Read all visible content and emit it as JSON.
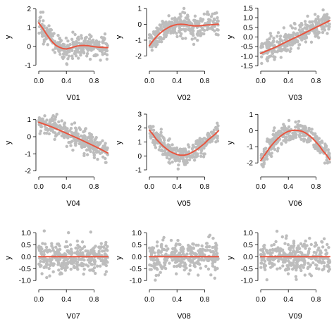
{
  "chart_data": [
    {
      "type": "scatter",
      "id": "V01",
      "xlabel": "V01",
      "ylabel": "y",
      "xlim": [
        0,
        1
      ],
      "ylim": [
        -1.1,
        2.1
      ],
      "xticks": [
        0.0,
        0.4,
        0.8
      ],
      "xtick_labels": [
        "0.0",
        "0.4",
        "0.8"
      ],
      "yticks": [
        -1,
        0,
        1,
        2
      ],
      "ytick_labels": [
        "-1",
        "0",
        "1",
        "2"
      ],
      "noise": 0.3,
      "fit_x": [
        0,
        0.05,
        0.1,
        0.15,
        0.2,
        0.25,
        0.3,
        0.35,
        0.4,
        0.45,
        0.5,
        0.55,
        0.6,
        0.65,
        0.7,
        0.75,
        0.8,
        0.85,
        0.9,
        0.95,
        1.0
      ],
      "fit_y": [
        1.25,
        1.0,
        0.72,
        0.45,
        0.22,
        0.05,
        -0.05,
        -0.12,
        -0.14,
        -0.1,
        -0.04,
        0.01,
        0.04,
        0.05,
        0.04,
        0.01,
        -0.02,
        -0.04,
        -0.05,
        -0.06,
        -0.07
      ]
    },
    {
      "type": "scatter",
      "id": "V02",
      "xlabel": "V02",
      "ylabel": "y",
      "xlim": [
        0,
        1
      ],
      "ylim": [
        -2.7,
        1.1
      ],
      "xticks": [
        0.0,
        0.4,
        0.8
      ],
      "xtick_labels": [
        "0.0",
        "0.4",
        "0.8"
      ],
      "yticks": [
        -2,
        -1,
        0,
        1
      ],
      "ytick_labels": [
        "-2",
        "-1",
        "0",
        "1"
      ],
      "noise": 0.35,
      "fit_x": [
        0,
        0.05,
        0.1,
        0.15,
        0.2,
        0.25,
        0.3,
        0.35,
        0.4,
        0.45,
        0.5,
        0.55,
        0.6,
        0.65,
        0.7,
        0.75,
        0.8,
        0.85,
        0.9,
        0.95,
        1.0
      ],
      "fit_y": [
        -1.35,
        -1.05,
        -0.8,
        -0.58,
        -0.4,
        -0.26,
        -0.14,
        -0.06,
        -0.01,
        0.01,
        0.0,
        -0.03,
        -0.07,
        -0.1,
        -0.1,
        -0.08,
        -0.05,
        -0.03,
        -0.02,
        0.0,
        0.02
      ]
    },
    {
      "type": "scatter",
      "id": "V03",
      "xlabel": "V03",
      "ylabel": "y",
      "xlim": [
        0,
        1
      ],
      "ylim": [
        -1.55,
        1.55
      ],
      "xticks": [
        0.0,
        0.4,
        0.8
      ],
      "xtick_labels": [
        "0.0",
        "0.4",
        "0.8"
      ],
      "yticks": [
        -1.5,
        -1.0,
        -0.5,
        0.0,
        0.5,
        1.0,
        1.5
      ],
      "ytick_labels": [
        "-1.5",
        "-1.0",
        "-0.5",
        "0.0",
        "0.5",
        "1.0",
        "1.5"
      ],
      "noise": 0.3,
      "fit_x": [
        0,
        0.1,
        0.2,
        0.3,
        0.4,
        0.5,
        0.6,
        0.7,
        0.8,
        0.9,
        1.0
      ],
      "fit_y": [
        -0.85,
        -0.7,
        -0.55,
        -0.38,
        -0.2,
        -0.03,
        0.14,
        0.32,
        0.5,
        0.67,
        0.85
      ]
    },
    {
      "type": "scatter",
      "id": "V04",
      "xlabel": "V04",
      "ylabel": "y",
      "xlim": [
        0,
        1
      ],
      "ylim": [
        -2.1,
        1.4
      ],
      "xticks": [
        0.0,
        0.4,
        0.8
      ],
      "xtick_labels": [
        "0.0",
        "0.4",
        "0.8"
      ],
      "yticks": [
        -2,
        -1,
        0,
        1
      ],
      "ytick_labels": [
        "-2",
        "-1",
        "0",
        "1"
      ],
      "noise": 0.3,
      "fit_x": [
        0,
        0.1,
        0.2,
        0.3,
        0.4,
        0.5,
        0.6,
        0.7,
        0.8,
        0.9,
        1.0
      ],
      "fit_y": [
        0.85,
        0.7,
        0.55,
        0.38,
        0.2,
        0.02,
        -0.16,
        -0.35,
        -0.54,
        -0.74,
        -0.95
      ]
    },
    {
      "type": "scatter",
      "id": "V05",
      "xlabel": "V05",
      "ylabel": "y",
      "xlim": [
        0,
        1
      ],
      "ylim": [
        -1.2,
        3.1
      ],
      "xticks": [
        0.0,
        0.4,
        0.8
      ],
      "xtick_labels": [
        "0.0",
        "0.4",
        "0.8"
      ],
      "yticks": [
        -1,
        0,
        1,
        2,
        3
      ],
      "ytick_labels": [
        "-1",
        "0",
        "1",
        "2",
        "3"
      ],
      "noise": 0.35,
      "fit_x": [
        0,
        0.05,
        0.1,
        0.15,
        0.2,
        0.25,
        0.3,
        0.35,
        0.4,
        0.45,
        0.5,
        0.55,
        0.6,
        0.65,
        0.7,
        0.75,
        0.8,
        0.85,
        0.9,
        0.95,
        1.0
      ],
      "fit_y": [
        1.85,
        1.55,
        1.2,
        0.95,
        0.7,
        0.5,
        0.32,
        0.2,
        0.1,
        0.05,
        0.05,
        0.1,
        0.2,
        0.35,
        0.5,
        0.7,
        0.9,
        1.15,
        1.35,
        1.55,
        1.8
      ]
    },
    {
      "type": "scatter",
      "id": "V06",
      "xlabel": "V06",
      "ylabel": "y",
      "xlim": [
        0,
        1
      ],
      "ylim": [
        -2.6,
        1.1
      ],
      "xticks": [
        0.0,
        0.4,
        0.8
      ],
      "xtick_labels": [
        "0.0",
        "0.4",
        "0.8"
      ],
      "yticks": [
        -2,
        -1,
        0,
        1
      ],
      "ytick_labels": [
        "-2",
        "-1",
        "0",
        "1"
      ],
      "noise": 0.3,
      "fit_x": [
        0,
        0.05,
        0.1,
        0.15,
        0.2,
        0.25,
        0.3,
        0.35,
        0.4,
        0.45,
        0.5,
        0.55,
        0.6,
        0.65,
        0.7,
        0.75,
        0.8,
        0.85,
        0.9,
        0.95,
        1.0
      ],
      "fit_y": [
        -1.85,
        -1.55,
        -1.25,
        -0.95,
        -0.7,
        -0.48,
        -0.3,
        -0.15,
        -0.05,
        0.0,
        0.02,
        0.0,
        -0.05,
        -0.15,
        -0.3,
        -0.48,
        -0.7,
        -0.95,
        -1.25,
        -1.5,
        -1.8
      ]
    },
    {
      "type": "scatter",
      "id": "V07",
      "xlabel": "V07",
      "ylabel": "y",
      "xlim": [
        0,
        1
      ],
      "ylim": [
        -1.2,
        1.1
      ],
      "xticks": [
        0.0,
        0.4,
        0.8
      ],
      "xtick_labels": [
        "0.0",
        "0.4",
        "0.8"
      ],
      "yticks": [
        -1.0,
        -0.5,
        0.0,
        0.5,
        1.0
      ],
      "ytick_labels": [
        "-1.0",
        "-0.5",
        "0.0",
        "0.5",
        "1.0"
      ],
      "noise": 0.32,
      "fit_x": [
        0,
        1
      ],
      "fit_y": [
        0.0,
        0.0
      ]
    },
    {
      "type": "scatter",
      "id": "V08",
      "xlabel": "V08",
      "ylabel": "y",
      "xlim": [
        0,
        1
      ],
      "ylim": [
        -1.2,
        1.1
      ],
      "xticks": [
        0.0,
        0.4,
        0.8
      ],
      "xtick_labels": [
        "0.0",
        "0.4",
        "0.8"
      ],
      "yticks": [
        -1.0,
        -0.5,
        0.0,
        0.5,
        1.0
      ],
      "ytick_labels": [
        "-1.0",
        "-0.5",
        "0.0",
        "0.5",
        "1.0"
      ],
      "noise": 0.32,
      "fit_x": [
        0,
        1
      ],
      "fit_y": [
        0.0,
        0.0
      ]
    },
    {
      "type": "scatter",
      "id": "V09",
      "xlabel": "V09",
      "ylabel": "y",
      "xlim": [
        0,
        1
      ],
      "ylim": [
        -1.2,
        1.1
      ],
      "xticks": [
        0.0,
        0.4,
        0.8
      ],
      "xtick_labels": [
        "0.0",
        "0.4",
        "0.8"
      ],
      "yticks": [
        -1.0,
        -0.5,
        0.0,
        0.5,
        1.0
      ],
      "ytick_labels": [
        "-1.0",
        "-0.5",
        "0.0",
        "0.5",
        "1.0"
      ],
      "noise": 0.32,
      "fit_x": [
        0,
        1
      ],
      "fit_y": [
        0.0,
        0.0
      ]
    }
  ],
  "colors": {
    "points": "#bdbdbd",
    "fit_line": "#e8553f",
    "axis": "#000000"
  },
  "points_per_panel": 300
}
